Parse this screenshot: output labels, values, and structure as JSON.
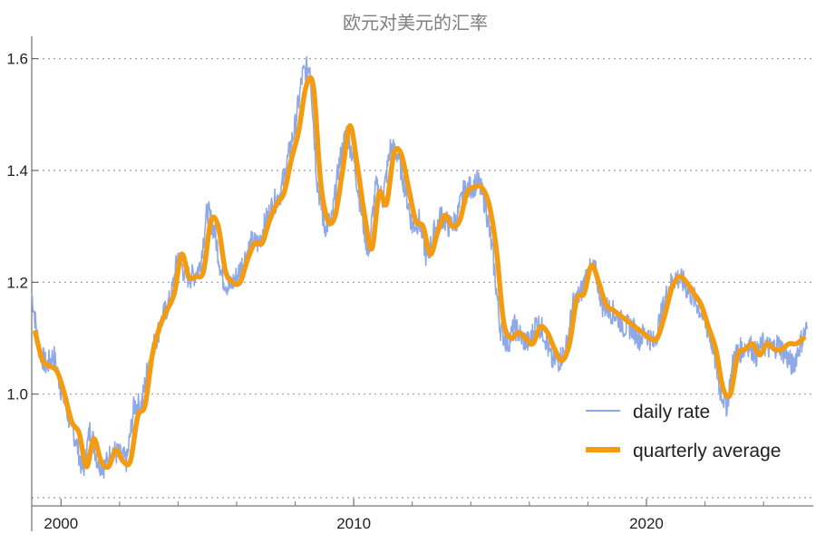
{
  "chart_data": {
    "type": "line",
    "title": "欧元对美元的汇率",
    "xlabel": "",
    "ylabel": "",
    "xlim": [
      1999.0,
      2025.7
    ],
    "ylim": [
      0.8,
      1.64
    ],
    "x_ticks": [
      2000,
      2010,
      2020
    ],
    "x_minor_ticks": [
      2002,
      2004,
      2006,
      2008,
      2012,
      2014,
      2016,
      2018,
      2022,
      2024
    ],
    "y_ticks": [
      1.0,
      1.2,
      1.4,
      1.6
    ],
    "y_tick_labels": [
      "1.0",
      "1.2",
      "1.4",
      "1.6"
    ],
    "grid": "horizontal dotted",
    "legend_position": "bottom-right",
    "series": [
      {
        "name": "daily rate",
        "color": "#8fa8e6",
        "style": "thin noisy line",
        "x": [
          1999.0,
          1999.25,
          1999.5,
          1999.75,
          2000.0,
          2000.25,
          2000.5,
          2000.75,
          2001.0,
          2001.25,
          2001.5,
          2001.75,
          2002.0,
          2002.25,
          2002.5,
          2002.75,
          2003.0,
          2003.25,
          2003.5,
          2003.75,
          2004.0,
          2004.25,
          2004.5,
          2004.75,
          2005.0,
          2005.25,
          2005.5,
          2005.75,
          2006.0,
          2006.25,
          2006.5,
          2006.75,
          2007.0,
          2007.25,
          2007.5,
          2007.75,
          2008.0,
          2008.25,
          2008.5,
          2008.75,
          2009.0,
          2009.25,
          2009.5,
          2009.75,
          2010.0,
          2010.25,
          2010.5,
          2010.75,
          2011.0,
          2011.25,
          2011.5,
          2011.75,
          2012.0,
          2012.25,
          2012.5,
          2012.75,
          2013.0,
          2013.25,
          2013.5,
          2013.75,
          2014.0,
          2014.25,
          2014.5,
          2014.75,
          2015.0,
          2015.25,
          2015.5,
          2015.75,
          2016.0,
          2016.25,
          2016.5,
          2016.75,
          2017.0,
          2017.25,
          2017.5,
          2017.75,
          2018.0,
          2018.25,
          2018.5,
          2018.75,
          2019.0,
          2019.25,
          2019.5,
          2019.75,
          2020.0,
          2020.25,
          2020.5,
          2020.75,
          2021.0,
          2021.25,
          2021.5,
          2021.75,
          2022.0,
          2022.25,
          2022.5,
          2022.75,
          2023.0,
          2023.25,
          2023.5,
          2023.75,
          2024.0,
          2024.25,
          2024.5,
          2024.75,
          2025.0,
          2025.25,
          2025.5
        ],
        "y": [
          1.18,
          1.08,
          1.05,
          1.07,
          1.01,
          0.96,
          0.92,
          0.86,
          0.94,
          0.88,
          0.87,
          0.9,
          0.89,
          0.88,
          0.98,
          0.98,
          1.06,
          1.1,
          1.14,
          1.17,
          1.25,
          1.21,
          1.21,
          1.23,
          1.33,
          1.29,
          1.21,
          1.19,
          1.21,
          1.24,
          1.27,
          1.27,
          1.31,
          1.34,
          1.36,
          1.42,
          1.48,
          1.57,
          1.59,
          1.38,
          1.3,
          1.31,
          1.41,
          1.47,
          1.42,
          1.33,
          1.25,
          1.37,
          1.35,
          1.44,
          1.43,
          1.37,
          1.3,
          1.31,
          1.24,
          1.29,
          1.32,
          1.3,
          1.31,
          1.36,
          1.37,
          1.38,
          1.34,
          1.25,
          1.12,
          1.09,
          1.12,
          1.1,
          1.09,
          1.13,
          1.11,
          1.06,
          1.06,
          1.08,
          1.16,
          1.18,
          1.22,
          1.22,
          1.16,
          1.15,
          1.14,
          1.12,
          1.12,
          1.1,
          1.11,
          1.09,
          1.14,
          1.19,
          1.21,
          1.2,
          1.18,
          1.16,
          1.13,
          1.09,
          1.01,
          0.98,
          1.07,
          1.08,
          1.09,
          1.07,
          1.09,
          1.08,
          1.09,
          1.07,
          1.05,
          1.09,
          1.12
        ]
      },
      {
        "name": "quarterly average",
        "color": "#f39c12",
        "style": "thick smooth line",
        "x": [
          1999.12,
          1999.37,
          1999.62,
          1999.87,
          2000.12,
          2000.37,
          2000.62,
          2000.87,
          2001.12,
          2001.37,
          2001.62,
          2001.87,
          2002.12,
          2002.37,
          2002.62,
          2002.87,
          2003.12,
          2003.37,
          2003.62,
          2003.87,
          2004.12,
          2004.37,
          2004.62,
          2004.87,
          2005.12,
          2005.37,
          2005.62,
          2005.87,
          2006.12,
          2006.37,
          2006.62,
          2006.87,
          2007.12,
          2007.37,
          2007.62,
          2007.87,
          2008.12,
          2008.37,
          2008.62,
          2008.87,
          2009.12,
          2009.37,
          2009.62,
          2009.87,
          2010.12,
          2010.37,
          2010.62,
          2010.87,
          2011.12,
          2011.37,
          2011.62,
          2011.87,
          2012.12,
          2012.37,
          2012.62,
          2012.87,
          2013.12,
          2013.37,
          2013.62,
          2013.87,
          2014.12,
          2014.37,
          2014.62,
          2014.87,
          2015.12,
          2015.37,
          2015.62,
          2015.87,
          2016.12,
          2016.37,
          2016.62,
          2016.87,
          2017.12,
          2017.37,
          2017.62,
          2017.87,
          2018.12,
          2018.37,
          2018.62,
          2018.87,
          2019.12,
          2019.37,
          2019.62,
          2019.87,
          2020.12,
          2020.37,
          2020.62,
          2020.87,
          2021.12,
          2021.37,
          2021.62,
          2021.87,
          2022.12,
          2022.37,
          2022.62,
          2022.87,
          2023.12,
          2023.37,
          2023.62,
          2023.87,
          2024.12,
          2024.37,
          2024.62,
          2024.87,
          2025.12,
          2025.37
        ],
        "y": [
          1.11,
          1.06,
          1.05,
          1.04,
          1.0,
          0.95,
          0.93,
          0.87,
          0.92,
          0.88,
          0.87,
          0.9,
          0.88,
          0.88,
          0.96,
          0.98,
          1.07,
          1.12,
          1.15,
          1.18,
          1.25,
          1.21,
          1.21,
          1.22,
          1.31,
          1.3,
          1.22,
          1.2,
          1.2,
          1.24,
          1.27,
          1.27,
          1.31,
          1.34,
          1.36,
          1.42,
          1.47,
          1.55,
          1.55,
          1.38,
          1.31,
          1.32,
          1.4,
          1.48,
          1.41,
          1.32,
          1.26,
          1.36,
          1.34,
          1.43,
          1.43,
          1.37,
          1.31,
          1.3,
          1.25,
          1.29,
          1.32,
          1.3,
          1.31,
          1.36,
          1.37,
          1.37,
          1.34,
          1.26,
          1.13,
          1.1,
          1.11,
          1.1,
          1.09,
          1.12,
          1.11,
          1.08,
          1.06,
          1.09,
          1.17,
          1.18,
          1.23,
          1.2,
          1.16,
          1.15,
          1.14,
          1.13,
          1.12,
          1.11,
          1.1,
          1.1,
          1.14,
          1.19,
          1.21,
          1.2,
          1.18,
          1.16,
          1.12,
          1.08,
          1.01,
          1.0,
          1.07,
          1.08,
          1.09,
          1.07,
          1.09,
          1.08,
          1.08,
          1.09,
          1.09,
          1.1
        ]
      }
    ]
  }
}
